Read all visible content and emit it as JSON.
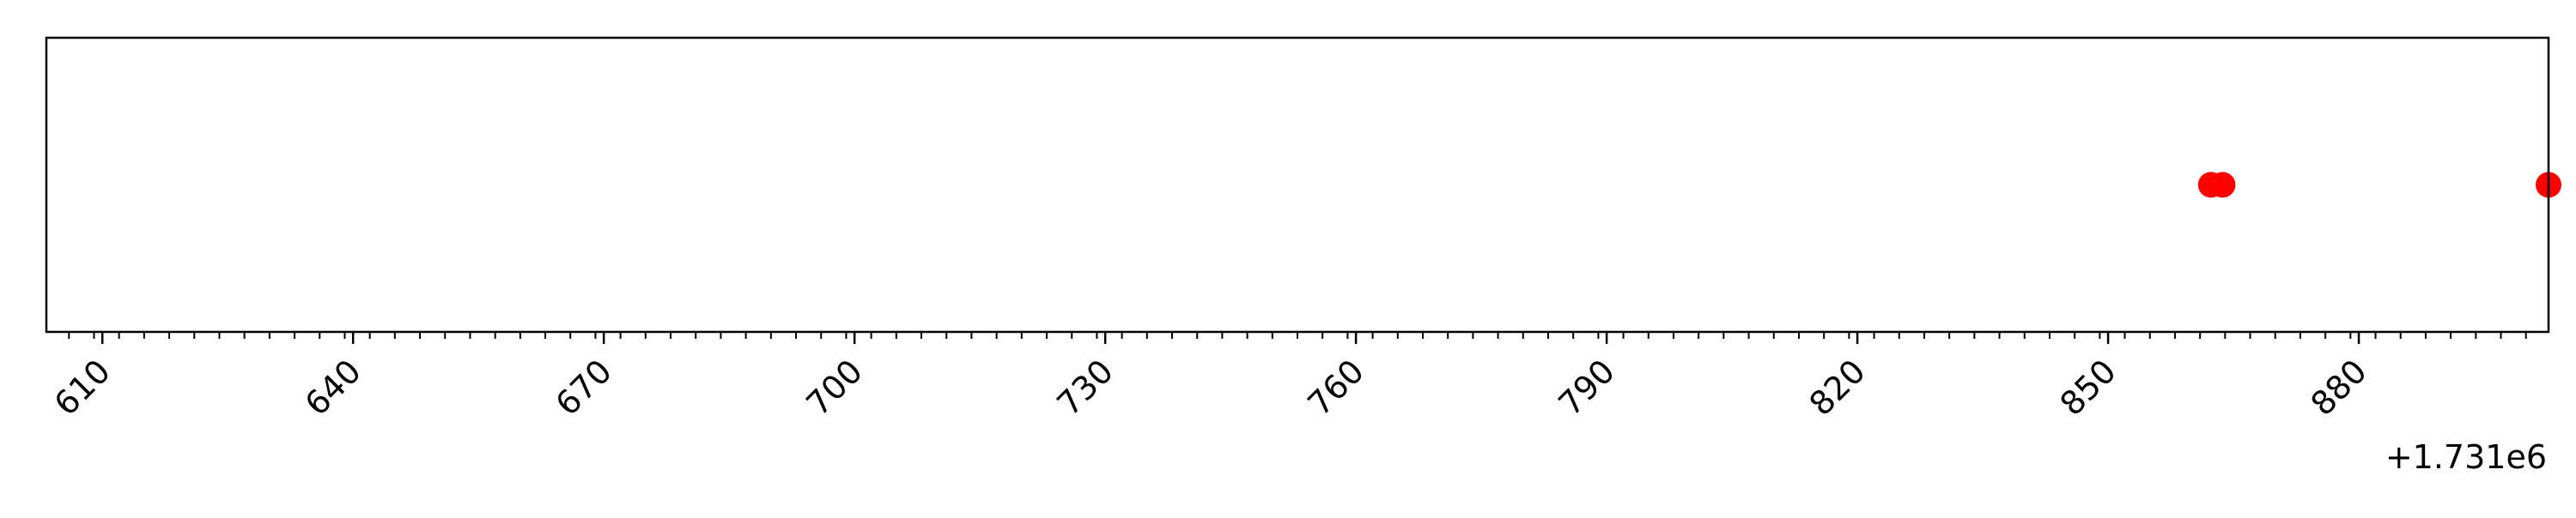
{
  "chart_data": {
    "type": "scatter",
    "title": "",
    "xlabel": "",
    "ylabel": "",
    "x_offset_label": "+1.731e6",
    "xlim": [
      1731603.3,
      1731902.7
    ],
    "ylim": [
      -1,
      1
    ],
    "major_ticks": [
      610,
      640,
      670,
      700,
      730,
      760,
      790,
      820,
      850,
      880
    ],
    "minor_tick_step": 3,
    "grid": false,
    "marker_color": "#ff0000",
    "series": [
      {
        "points": [
          {
            "x": 1731862.3,
            "y": 0
          },
          {
            "x": 1731863.7,
            "y": 0
          },
          {
            "x": 1731902.7,
            "y": 0
          }
        ]
      }
    ]
  }
}
